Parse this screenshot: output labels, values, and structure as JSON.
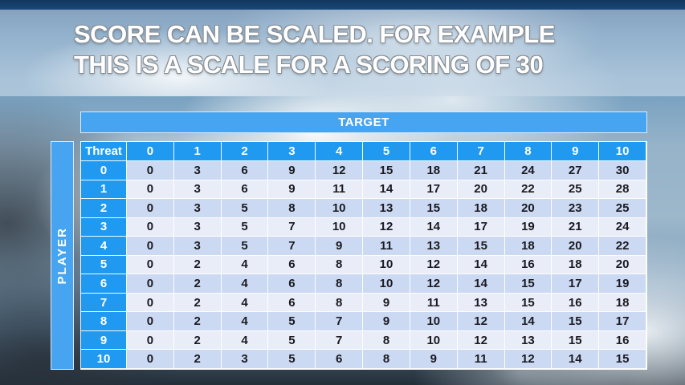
{
  "title": {
    "line1": "SCORE CAN BE SCALED. FOR EXAMPLE",
    "line2": "THIS IS A SCALE FOR A SCORING OF 30"
  },
  "table": {
    "target_label": "TARGET",
    "player_label": "PLAYER",
    "corner_label": "Threat",
    "column_headers": [
      "0",
      "1",
      "2",
      "3",
      "4",
      "5",
      "6",
      "7",
      "8",
      "9",
      "10"
    ],
    "rows": [
      {
        "header": "0",
        "values": [
          0,
          3,
          6,
          9,
          12,
          15,
          18,
          21,
          24,
          27,
          30
        ]
      },
      {
        "header": "1",
        "values": [
          0,
          3,
          6,
          9,
          11,
          14,
          17,
          20,
          22,
          25,
          28
        ]
      },
      {
        "header": "2",
        "values": [
          0,
          3,
          5,
          8,
          10,
          13,
          15,
          18,
          20,
          23,
          25
        ]
      },
      {
        "header": "3",
        "values": [
          0,
          3,
          5,
          7,
          10,
          12,
          14,
          17,
          19,
          21,
          24
        ]
      },
      {
        "header": "4",
        "values": [
          0,
          3,
          5,
          7,
          9,
          11,
          13,
          15,
          18,
          20,
          22
        ]
      },
      {
        "header": "5",
        "values": [
          0,
          2,
          4,
          6,
          8,
          10,
          12,
          14,
          16,
          18,
          20
        ]
      },
      {
        "header": "6",
        "values": [
          0,
          2,
          4,
          6,
          8,
          10,
          12,
          14,
          15,
          17,
          19
        ]
      },
      {
        "header": "7",
        "values": [
          0,
          2,
          4,
          6,
          8,
          9,
          11,
          13,
          15,
          16,
          18
        ]
      },
      {
        "header": "8",
        "values": [
          0,
          2,
          4,
          5,
          7,
          9,
          10,
          12,
          14,
          15,
          17
        ]
      },
      {
        "header": "9",
        "values": [
          0,
          2,
          4,
          5,
          7,
          8,
          10,
          12,
          13,
          15,
          16
        ]
      },
      {
        "header": "10",
        "values": [
          0,
          2,
          3,
          5,
          6,
          8,
          9,
          11,
          12,
          14,
          15
        ]
      }
    ]
  },
  "colors": {
    "header_blue": "#209af1",
    "bar_blue": "#47a4f0",
    "row_even": "#cbd9f3",
    "row_odd": "#e9edf8",
    "cell_text": "#1a1a20"
  }
}
